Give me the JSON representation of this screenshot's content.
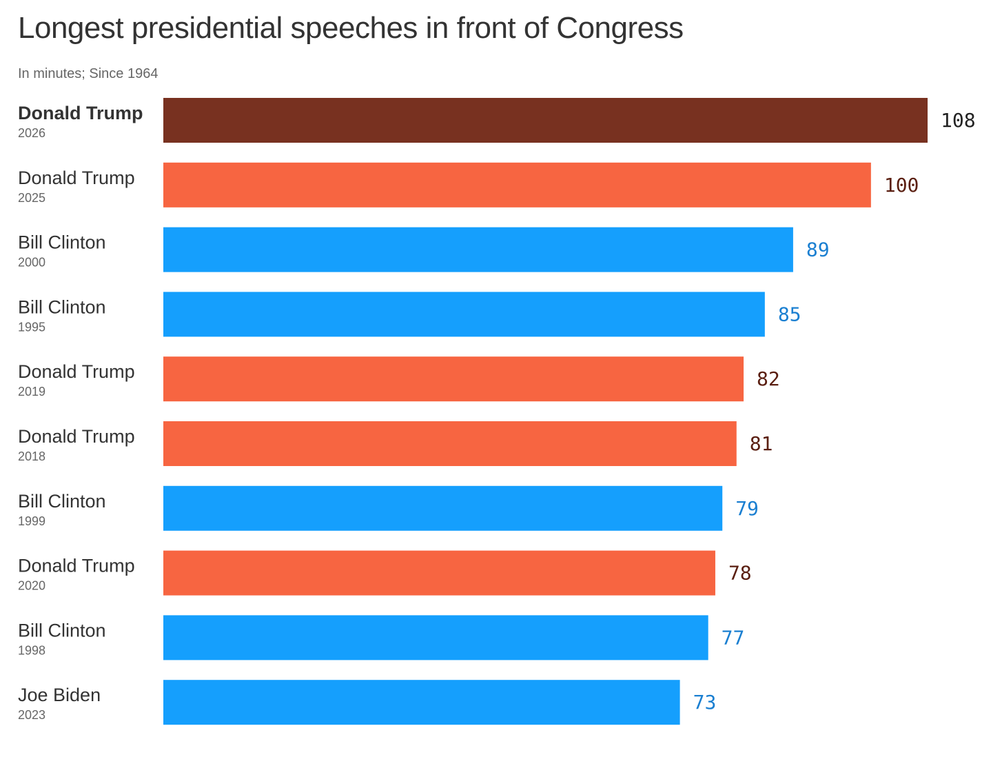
{
  "title": "Longest presidential speeches in front of Congress",
  "subtitle": "In minutes; Since 1964",
  "colors": {
    "highlight": "#783120",
    "republican": "#f76541",
    "democrat": "#159ffd",
    "label_republican": "#5a1e10",
    "label_democrat": "#1a7fd1",
    "label_highlight": "#222222"
  },
  "chart_data": {
    "type": "bar",
    "orientation": "horizontal",
    "title": "Longest presidential speeches in front of Congress",
    "subtitle": "In minutes; Since 1964",
    "xlabel": "",
    "ylabel": "",
    "xlim": [
      0,
      108
    ],
    "grid": false,
    "categories": [
      {
        "name": "Donald Trump",
        "year": "2026",
        "value": 108,
        "group": "highlight"
      },
      {
        "name": "Donald Trump",
        "year": "2025",
        "value": 100,
        "group": "republican"
      },
      {
        "name": "Bill Clinton",
        "year": "2000",
        "value": 89,
        "group": "democrat"
      },
      {
        "name": "Bill Clinton",
        "year": "1995",
        "value": 85,
        "group": "democrat"
      },
      {
        "name": "Donald Trump",
        "year": "2019",
        "value": 82,
        "group": "republican"
      },
      {
        "name": "Donald Trump",
        "year": "2018",
        "value": 81,
        "group": "republican"
      },
      {
        "name": "Bill Clinton",
        "year": "1999",
        "value": 79,
        "group": "democrat"
      },
      {
        "name": "Donald Trump",
        "year": "2020",
        "value": 78,
        "group": "republican"
      },
      {
        "name": "Bill Clinton",
        "year": "1998",
        "value": 77,
        "group": "democrat"
      },
      {
        "name": "Joe Biden",
        "year": "2023",
        "value": 73,
        "group": "democrat"
      }
    ]
  }
}
